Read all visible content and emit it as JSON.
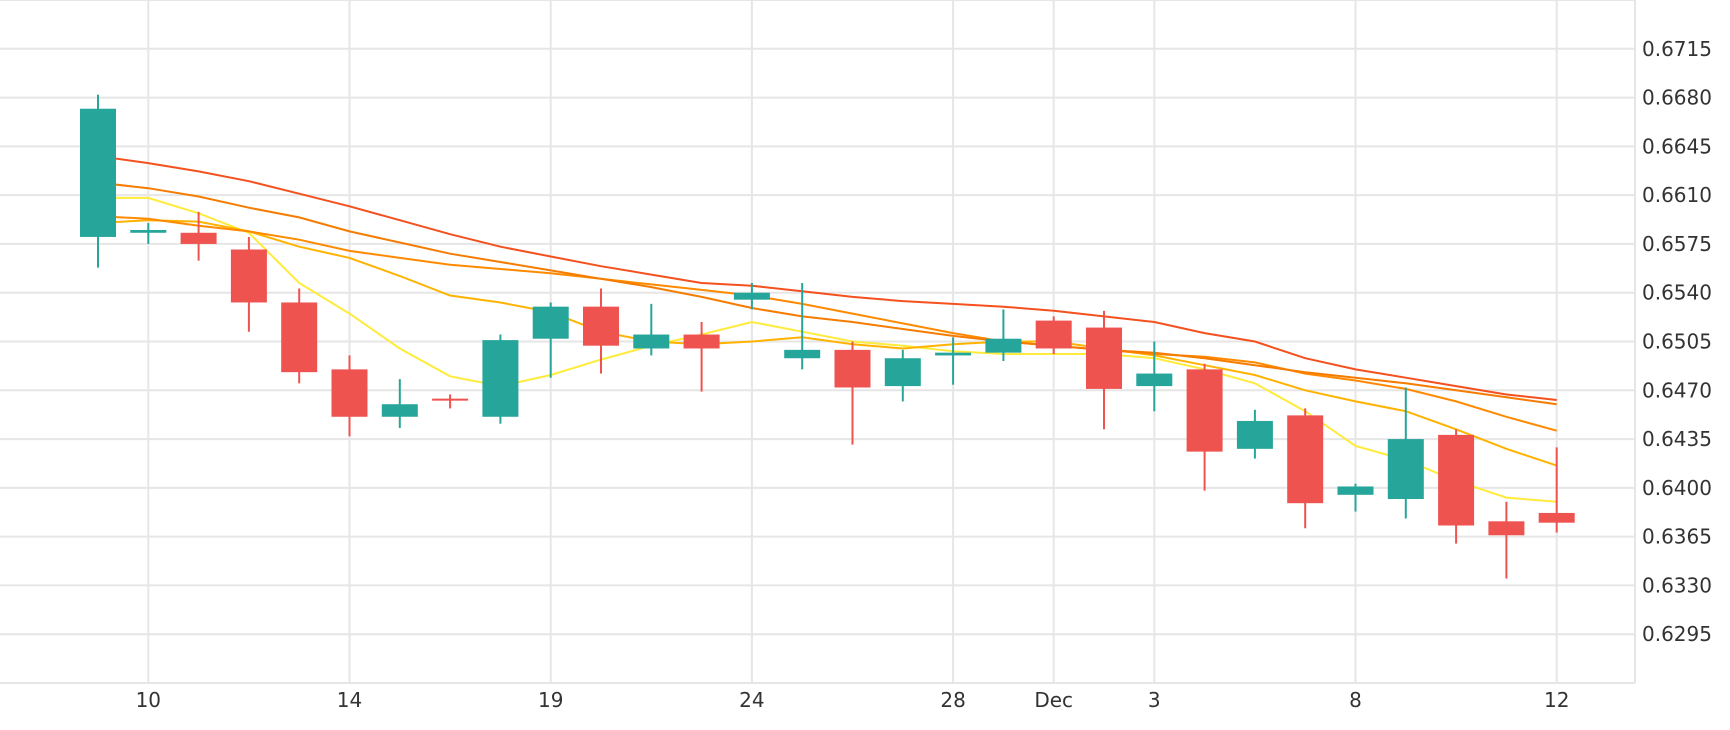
{
  "chart_data": {
    "type": "candlestick",
    "title": "",
    "xlabel": "",
    "ylabel": "",
    "ylim": [
      0.626,
      0.675
    ],
    "grid": true,
    "up_color": "#26a69a",
    "down_color": "#ef5350",
    "x_tick_labels": [
      {
        "label": "10",
        "at": 1
      },
      {
        "label": "14",
        "at": 5
      },
      {
        "label": "19",
        "at": 9
      },
      {
        "label": "24",
        "at": 13
      },
      {
        "label": "28",
        "at": 17
      },
      {
        "label": "Dec",
        "at": 19
      },
      {
        "label": "3",
        "at": 21
      },
      {
        "label": "8",
        "at": 25
      },
      {
        "label": "12",
        "at": 29
      }
    ],
    "y_ticks": [
      "0.6715",
      "0.6680",
      "0.6645",
      "0.6610",
      "0.6575",
      "0.6540",
      "0.6505",
      "0.6470",
      "0.6435",
      "0.6400",
      "0.6365",
      "0.6330",
      "0.6295"
    ],
    "candles": [
      {
        "i": 0,
        "open": 0.658,
        "high": 0.6682,
        "low": 0.6558,
        "close": 0.6672
      },
      {
        "i": 1,
        "open": 0.6583,
        "high": 0.659,
        "low": 0.6575,
        "close": 0.6585
      },
      {
        "i": 2,
        "open": 0.6583,
        "high": 0.6598,
        "low": 0.6563,
        "close": 0.6575
      },
      {
        "i": 3,
        "open": 0.6571,
        "high": 0.658,
        "low": 0.6512,
        "close": 0.6533
      },
      {
        "i": 4,
        "open": 0.6533,
        "high": 0.6543,
        "low": 0.6475,
        "close": 0.6483
      },
      {
        "i": 5,
        "open": 0.6485,
        "high": 0.6495,
        "low": 0.6437,
        "close": 0.6451
      },
      {
        "i": 6,
        "open": 0.6451,
        "high": 0.6478,
        "low": 0.6443,
        "close": 0.646
      },
      {
        "i": 7,
        "open": 0.6464,
        "high": 0.6467,
        "low": 0.6457,
        "close": 0.6463
      },
      {
        "i": 8,
        "open": 0.6451,
        "high": 0.651,
        "low": 0.6446,
        "close": 0.6506
      },
      {
        "i": 9,
        "open": 0.6507,
        "high": 0.6533,
        "low": 0.6479,
        "close": 0.653
      },
      {
        "i": 10,
        "open": 0.653,
        "high": 0.6543,
        "low": 0.6482,
        "close": 0.6502
      },
      {
        "i": 11,
        "open": 0.65,
        "high": 0.6532,
        "low": 0.6495,
        "close": 0.651
      },
      {
        "i": 12,
        "open": 0.651,
        "high": 0.6519,
        "low": 0.6469,
        "close": 0.65
      },
      {
        "i": 13,
        "open": 0.6535,
        "high": 0.6547,
        "low": 0.6528,
        "close": 0.654
      },
      {
        "i": 14,
        "open": 0.6493,
        "high": 0.6547,
        "low": 0.6485,
        "close": 0.6499
      },
      {
        "i": 15,
        "open": 0.6499,
        "high": 0.6505,
        "low": 0.6431,
        "close": 0.6472
      },
      {
        "i": 16,
        "open": 0.6473,
        "high": 0.6499,
        "low": 0.6462,
        "close": 0.6493
      },
      {
        "i": 17,
        "open": 0.6495,
        "high": 0.6508,
        "low": 0.6474,
        "close": 0.6497
      },
      {
        "i": 18,
        "open": 0.6497,
        "high": 0.6528,
        "low": 0.6491,
        "close": 0.6507
      },
      {
        "i": 19,
        "open": 0.652,
        "high": 0.6523,
        "low": 0.6496,
        "close": 0.65
      },
      {
        "i": 20,
        "open": 0.6515,
        "high": 0.6527,
        "low": 0.6442,
        "close": 0.6471
      },
      {
        "i": 21,
        "open": 0.6473,
        "high": 0.6505,
        "low": 0.6455,
        "close": 0.6482
      },
      {
        "i": 22,
        "open": 0.6485,
        "high": 0.6489,
        "low": 0.6398,
        "close": 0.6426
      },
      {
        "i": 23,
        "open": 0.6428,
        "high": 0.6456,
        "low": 0.6421,
        "close": 0.6448
      },
      {
        "i": 24,
        "open": 0.6452,
        "high": 0.6457,
        "low": 0.6371,
        "close": 0.6389
      },
      {
        "i": 25,
        "open": 0.6395,
        "high": 0.6403,
        "low": 0.6383,
        "close": 0.6401
      },
      {
        "i": 26,
        "open": 0.6392,
        "high": 0.6472,
        "low": 0.6378,
        "close": 0.6435
      },
      {
        "i": 27,
        "open": 0.6438,
        "high": 0.6442,
        "low": 0.636,
        "close": 0.6373
      },
      {
        "i": 28,
        "open": 0.6376,
        "high": 0.639,
        "low": 0.6335,
        "close": 0.6366
      },
      {
        "i": 29,
        "open": 0.6382,
        "high": 0.6429,
        "low": 0.6368,
        "close": 0.6375
      }
    ],
    "moving_averages": [
      {
        "color": "#ffeb3b",
        "values": [
          {
            "i": 0,
            "v": 0.6608
          },
          {
            "i": 1,
            "v": 0.6608
          },
          {
            "i": 2,
            "v": 0.6597
          },
          {
            "i": 3,
            "v": 0.6583
          },
          {
            "i": 4,
            "v": 0.6547
          },
          {
            "i": 5,
            "v": 0.6525
          },
          {
            "i": 6,
            "v": 0.65
          },
          {
            "i": 7,
            "v": 0.648
          },
          {
            "i": 8,
            "v": 0.6473
          },
          {
            "i": 9,
            "v": 0.6481
          },
          {
            "i": 10,
            "v": 0.6492
          },
          {
            "i": 11,
            "v": 0.6502
          },
          {
            "i": 12,
            "v": 0.651
          },
          {
            "i": 13,
            "v": 0.6519
          },
          {
            "i": 14,
            "v": 0.6512
          },
          {
            "i": 15,
            "v": 0.6505
          },
          {
            "i": 16,
            "v": 0.6502
          },
          {
            "i": 17,
            "v": 0.6498
          },
          {
            "i": 18,
            "v": 0.6496
          },
          {
            "i": 19,
            "v": 0.6496
          },
          {
            "i": 20,
            "v": 0.6496
          },
          {
            "i": 21,
            "v": 0.6493
          },
          {
            "i": 22,
            "v": 0.6485
          },
          {
            "i": 23,
            "v": 0.6475
          },
          {
            "i": 24,
            "v": 0.6455
          },
          {
            "i": 25,
            "v": 0.643
          },
          {
            "i": 26,
            "v": 0.642
          },
          {
            "i": 27,
            "v": 0.6405
          },
          {
            "i": 28,
            "v": 0.6393
          },
          {
            "i": 29,
            "v": 0.639
          }
        ]
      },
      {
        "color": "#ffb300",
        "values": [
          {
            "i": 0,
            "v": 0.659
          },
          {
            "i": 1,
            "v": 0.6592
          },
          {
            "i": 2,
            "v": 0.6591
          },
          {
            "i": 3,
            "v": 0.6584
          },
          {
            "i": 4,
            "v": 0.6573
          },
          {
            "i": 5,
            "v": 0.6565
          },
          {
            "i": 6,
            "v": 0.6552
          },
          {
            "i": 7,
            "v": 0.6538
          },
          {
            "i": 8,
            "v": 0.6533
          },
          {
            "i": 9,
            "v": 0.6526
          },
          {
            "i": 10,
            "v": 0.6512
          },
          {
            "i": 11,
            "v": 0.6505
          },
          {
            "i": 12,
            "v": 0.6503
          },
          {
            "i": 13,
            "v": 0.6505
          },
          {
            "i": 14,
            "v": 0.6508
          },
          {
            "i": 15,
            "v": 0.6503
          },
          {
            "i": 16,
            "v": 0.65
          },
          {
            "i": 17,
            "v": 0.6503
          },
          {
            "i": 18,
            "v": 0.6505
          },
          {
            "i": 19,
            "v": 0.6505
          },
          {
            "i": 20,
            "v": 0.65
          },
          {
            "i": 21,
            "v": 0.6495
          },
          {
            "i": 22,
            "v": 0.6488
          },
          {
            "i": 23,
            "v": 0.6481
          },
          {
            "i": 24,
            "v": 0.647
          },
          {
            "i": 25,
            "v": 0.6462
          },
          {
            "i": 26,
            "v": 0.6455
          },
          {
            "i": 27,
            "v": 0.6442
          },
          {
            "i": 28,
            "v": 0.6428
          },
          {
            "i": 29,
            "v": 0.6416
          }
        ]
      },
      {
        "color": "#ff8a00",
        "values": [
          {
            "i": 0,
            "v": 0.6595
          },
          {
            "i": 1,
            "v": 0.6593
          },
          {
            "i": 2,
            "v": 0.6588
          },
          {
            "i": 3,
            "v": 0.6584
          },
          {
            "i": 4,
            "v": 0.6578
          },
          {
            "i": 5,
            "v": 0.657
          },
          {
            "i": 6,
            "v": 0.6565
          },
          {
            "i": 7,
            "v": 0.656
          },
          {
            "i": 8,
            "v": 0.6557
          },
          {
            "i": 9,
            "v": 0.6554
          },
          {
            "i": 10,
            "v": 0.655
          },
          {
            "i": 11,
            "v": 0.6546
          },
          {
            "i": 12,
            "v": 0.6542
          },
          {
            "i": 13,
            "v": 0.6538
          },
          {
            "i": 14,
            "v": 0.6532
          },
          {
            "i": 15,
            "v": 0.6525
          },
          {
            "i": 16,
            "v": 0.6518
          },
          {
            "i": 17,
            "v": 0.6511
          },
          {
            "i": 18,
            "v": 0.6505
          },
          {
            "i": 19,
            "v": 0.6502
          },
          {
            "i": 20,
            "v": 0.6499
          },
          {
            "i": 21,
            "v": 0.6496
          },
          {
            "i": 22,
            "v": 0.6494
          },
          {
            "i": 23,
            "v": 0.649
          },
          {
            "i": 24,
            "v": 0.6482
          },
          {
            "i": 25,
            "v": 0.6477
          },
          {
            "i": 26,
            "v": 0.6471
          },
          {
            "i": 27,
            "v": 0.6462
          },
          {
            "i": 28,
            "v": 0.6451
          },
          {
            "i": 29,
            "v": 0.6441
          }
        ]
      },
      {
        "color": "#f57c00",
        "values": [
          {
            "i": 0,
            "v": 0.6619
          },
          {
            "i": 1,
            "v": 0.6615
          },
          {
            "i": 2,
            "v": 0.6609
          },
          {
            "i": 3,
            "v": 0.6601
          },
          {
            "i": 4,
            "v": 0.6594
          },
          {
            "i": 5,
            "v": 0.6584
          },
          {
            "i": 6,
            "v": 0.6576
          },
          {
            "i": 7,
            "v": 0.6568
          },
          {
            "i": 8,
            "v": 0.6562
          },
          {
            "i": 9,
            "v": 0.6556
          },
          {
            "i": 10,
            "v": 0.655
          },
          {
            "i": 11,
            "v": 0.6544
          },
          {
            "i": 12,
            "v": 0.6537
          },
          {
            "i": 13,
            "v": 0.6529
          },
          {
            "i": 14,
            "v": 0.6523
          },
          {
            "i": 15,
            "v": 0.6519
          },
          {
            "i": 16,
            "v": 0.6514
          },
          {
            "i": 17,
            "v": 0.6509
          },
          {
            "i": 18,
            "v": 0.6505
          },
          {
            "i": 19,
            "v": 0.6502
          },
          {
            "i": 20,
            "v": 0.6499
          },
          {
            "i": 21,
            "v": 0.6497
          },
          {
            "i": 22,
            "v": 0.6493
          },
          {
            "i": 23,
            "v": 0.6488
          },
          {
            "i": 24,
            "v": 0.6483
          },
          {
            "i": 25,
            "v": 0.6479
          },
          {
            "i": 26,
            "v": 0.6475
          },
          {
            "i": 27,
            "v": 0.647
          },
          {
            "i": 28,
            "v": 0.6465
          },
          {
            "i": 29,
            "v": 0.646
          }
        ]
      },
      {
        "color": "#f4511e",
        "values": [
          {
            "i": 0,
            "v": 0.6638
          },
          {
            "i": 1,
            "v": 0.6633
          },
          {
            "i": 2,
            "v": 0.6627
          },
          {
            "i": 3,
            "v": 0.662
          },
          {
            "i": 4,
            "v": 0.6611
          },
          {
            "i": 5,
            "v": 0.6602
          },
          {
            "i": 6,
            "v": 0.6592
          },
          {
            "i": 7,
            "v": 0.6582
          },
          {
            "i": 8,
            "v": 0.6573
          },
          {
            "i": 9,
            "v": 0.6566
          },
          {
            "i": 10,
            "v": 0.6559
          },
          {
            "i": 11,
            "v": 0.6553
          },
          {
            "i": 12,
            "v": 0.6547
          },
          {
            "i": 13,
            "v": 0.6545
          },
          {
            "i": 14,
            "v": 0.6541
          },
          {
            "i": 15,
            "v": 0.6537
          },
          {
            "i": 16,
            "v": 0.6534
          },
          {
            "i": 17,
            "v": 0.6532
          },
          {
            "i": 18,
            "v": 0.653
          },
          {
            "i": 19,
            "v": 0.6527
          },
          {
            "i": 20,
            "v": 0.6523
          },
          {
            "i": 21,
            "v": 0.6519
          },
          {
            "i": 22,
            "v": 0.6511
          },
          {
            "i": 23,
            "v": 0.6505
          },
          {
            "i": 24,
            "v": 0.6493
          },
          {
            "i": 25,
            "v": 0.6485
          },
          {
            "i": 26,
            "v": 0.6479
          },
          {
            "i": 27,
            "v": 0.6473
          },
          {
            "i": 28,
            "v": 0.6467
          },
          {
            "i": 29,
            "v": 0.6463
          }
        ]
      }
    ]
  }
}
